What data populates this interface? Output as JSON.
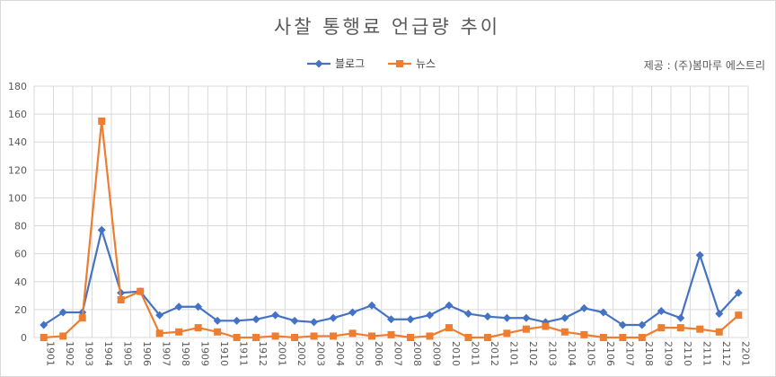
{
  "chart_data": {
    "type": "line",
    "title": "사찰 통행료 언급량 추이",
    "source": "제공 : (주)봄마루 에스트리",
    "legend_position": "top",
    "grid": true,
    "ylim": [
      0,
      180
    ],
    "yticks": [
      "0",
      "20",
      "40",
      "60",
      "80",
      "100",
      "120",
      "140",
      "160",
      "180"
    ],
    "categories": [
      "1901",
      "1902",
      "1903",
      "1904",
      "1905",
      "1906",
      "1907",
      "1908",
      "1909",
      "1910",
      "1911",
      "1912",
      "2001",
      "2002",
      "2003",
      "2004",
      "2005",
      "2006",
      "2007",
      "2008",
      "2009",
      "2010",
      "2011",
      "2012",
      "2101",
      "2102",
      "2103",
      "2104",
      "2105",
      "2106",
      "2107",
      "2108",
      "2109",
      "2110",
      "2111",
      "2112",
      "2201"
    ],
    "series": [
      {
        "name": "블로그",
        "color": "#4472c4",
        "marker": "diamond",
        "values": [
          9,
          18,
          18,
          77,
          32,
          33,
          16,
          22,
          22,
          12,
          12,
          13,
          16,
          12,
          11,
          14,
          18,
          23,
          13,
          13,
          16,
          23,
          17,
          15,
          14,
          14,
          11,
          14,
          21,
          18,
          9,
          9,
          19,
          14,
          59,
          17,
          32
        ]
      },
      {
        "name": "뉴스",
        "color": "#ed7d31",
        "marker": "square",
        "values": [
          0,
          1,
          14,
          155,
          27,
          33,
          3,
          4,
          7,
          4,
          0,
          0,
          1,
          0,
          1,
          1,
          3,
          1,
          2,
          0,
          1,
          7,
          0,
          0,
          3,
          6,
          8,
          4,
          2,
          0,
          0,
          0,
          7,
          7,
          6,
          4,
          16
        ]
      }
    ]
  }
}
